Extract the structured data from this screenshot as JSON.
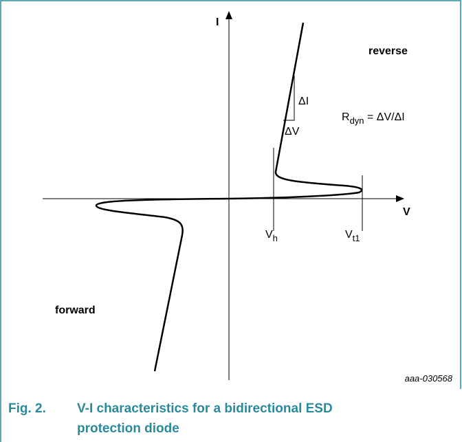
{
  "diagram": {
    "axis_i": "I",
    "axis_v": "V",
    "reverse": "reverse",
    "forward": "forward",
    "delta_i": "ΔI",
    "delta_v": "ΔV",
    "rdyn": {
      "main": "R",
      "sub": "dyn",
      "rest": " = ΔV/ΔI"
    },
    "vh": {
      "main": "V",
      "sub": "h"
    },
    "vt1": {
      "main": "V",
      "sub": "t1"
    },
    "code": "aaa-030568"
  },
  "caption": {
    "number": "Fig. 2.",
    "line1": "V-I characteristics for a bidirectional ESD",
    "line2": "protection diode"
  }
}
